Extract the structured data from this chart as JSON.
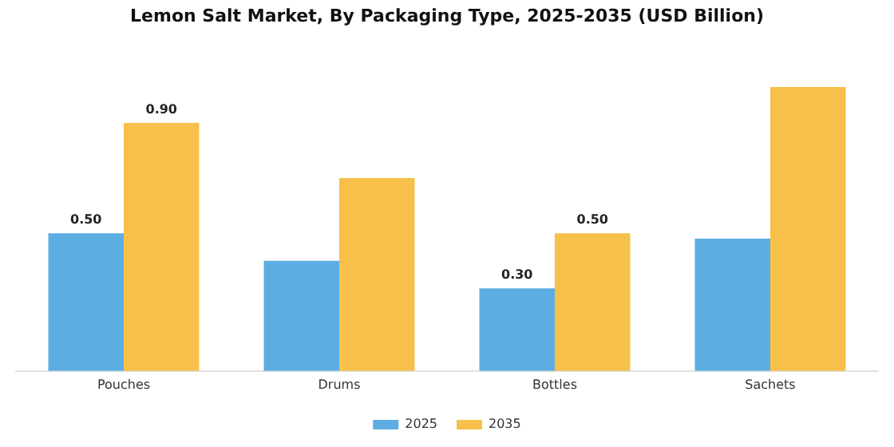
{
  "chart_data": {
    "type": "bar",
    "title": "Lemon Salt Market, By Packaging Type, 2025-2035 (USD Billion)",
    "categories": [
      "Pouches",
      "Drums",
      "Bottles",
      "Sachets"
    ],
    "series": [
      {
        "name": "2025",
        "color": "#5dade2",
        "values": [
          0.5,
          0.4,
          0.3,
          0.48
        ],
        "value_labels": [
          "0.50",
          null,
          "0.30",
          null
        ]
      },
      {
        "name": "2035",
        "color": "#f7c04a",
        "values": [
          0.9,
          0.7,
          0.5,
          1.03
        ],
        "value_labels": [
          "0.90",
          null,
          "0.50",
          null
        ]
      }
    ],
    "tick_labels": "x",
    "grid": false,
    "legend": "bottom"
  }
}
